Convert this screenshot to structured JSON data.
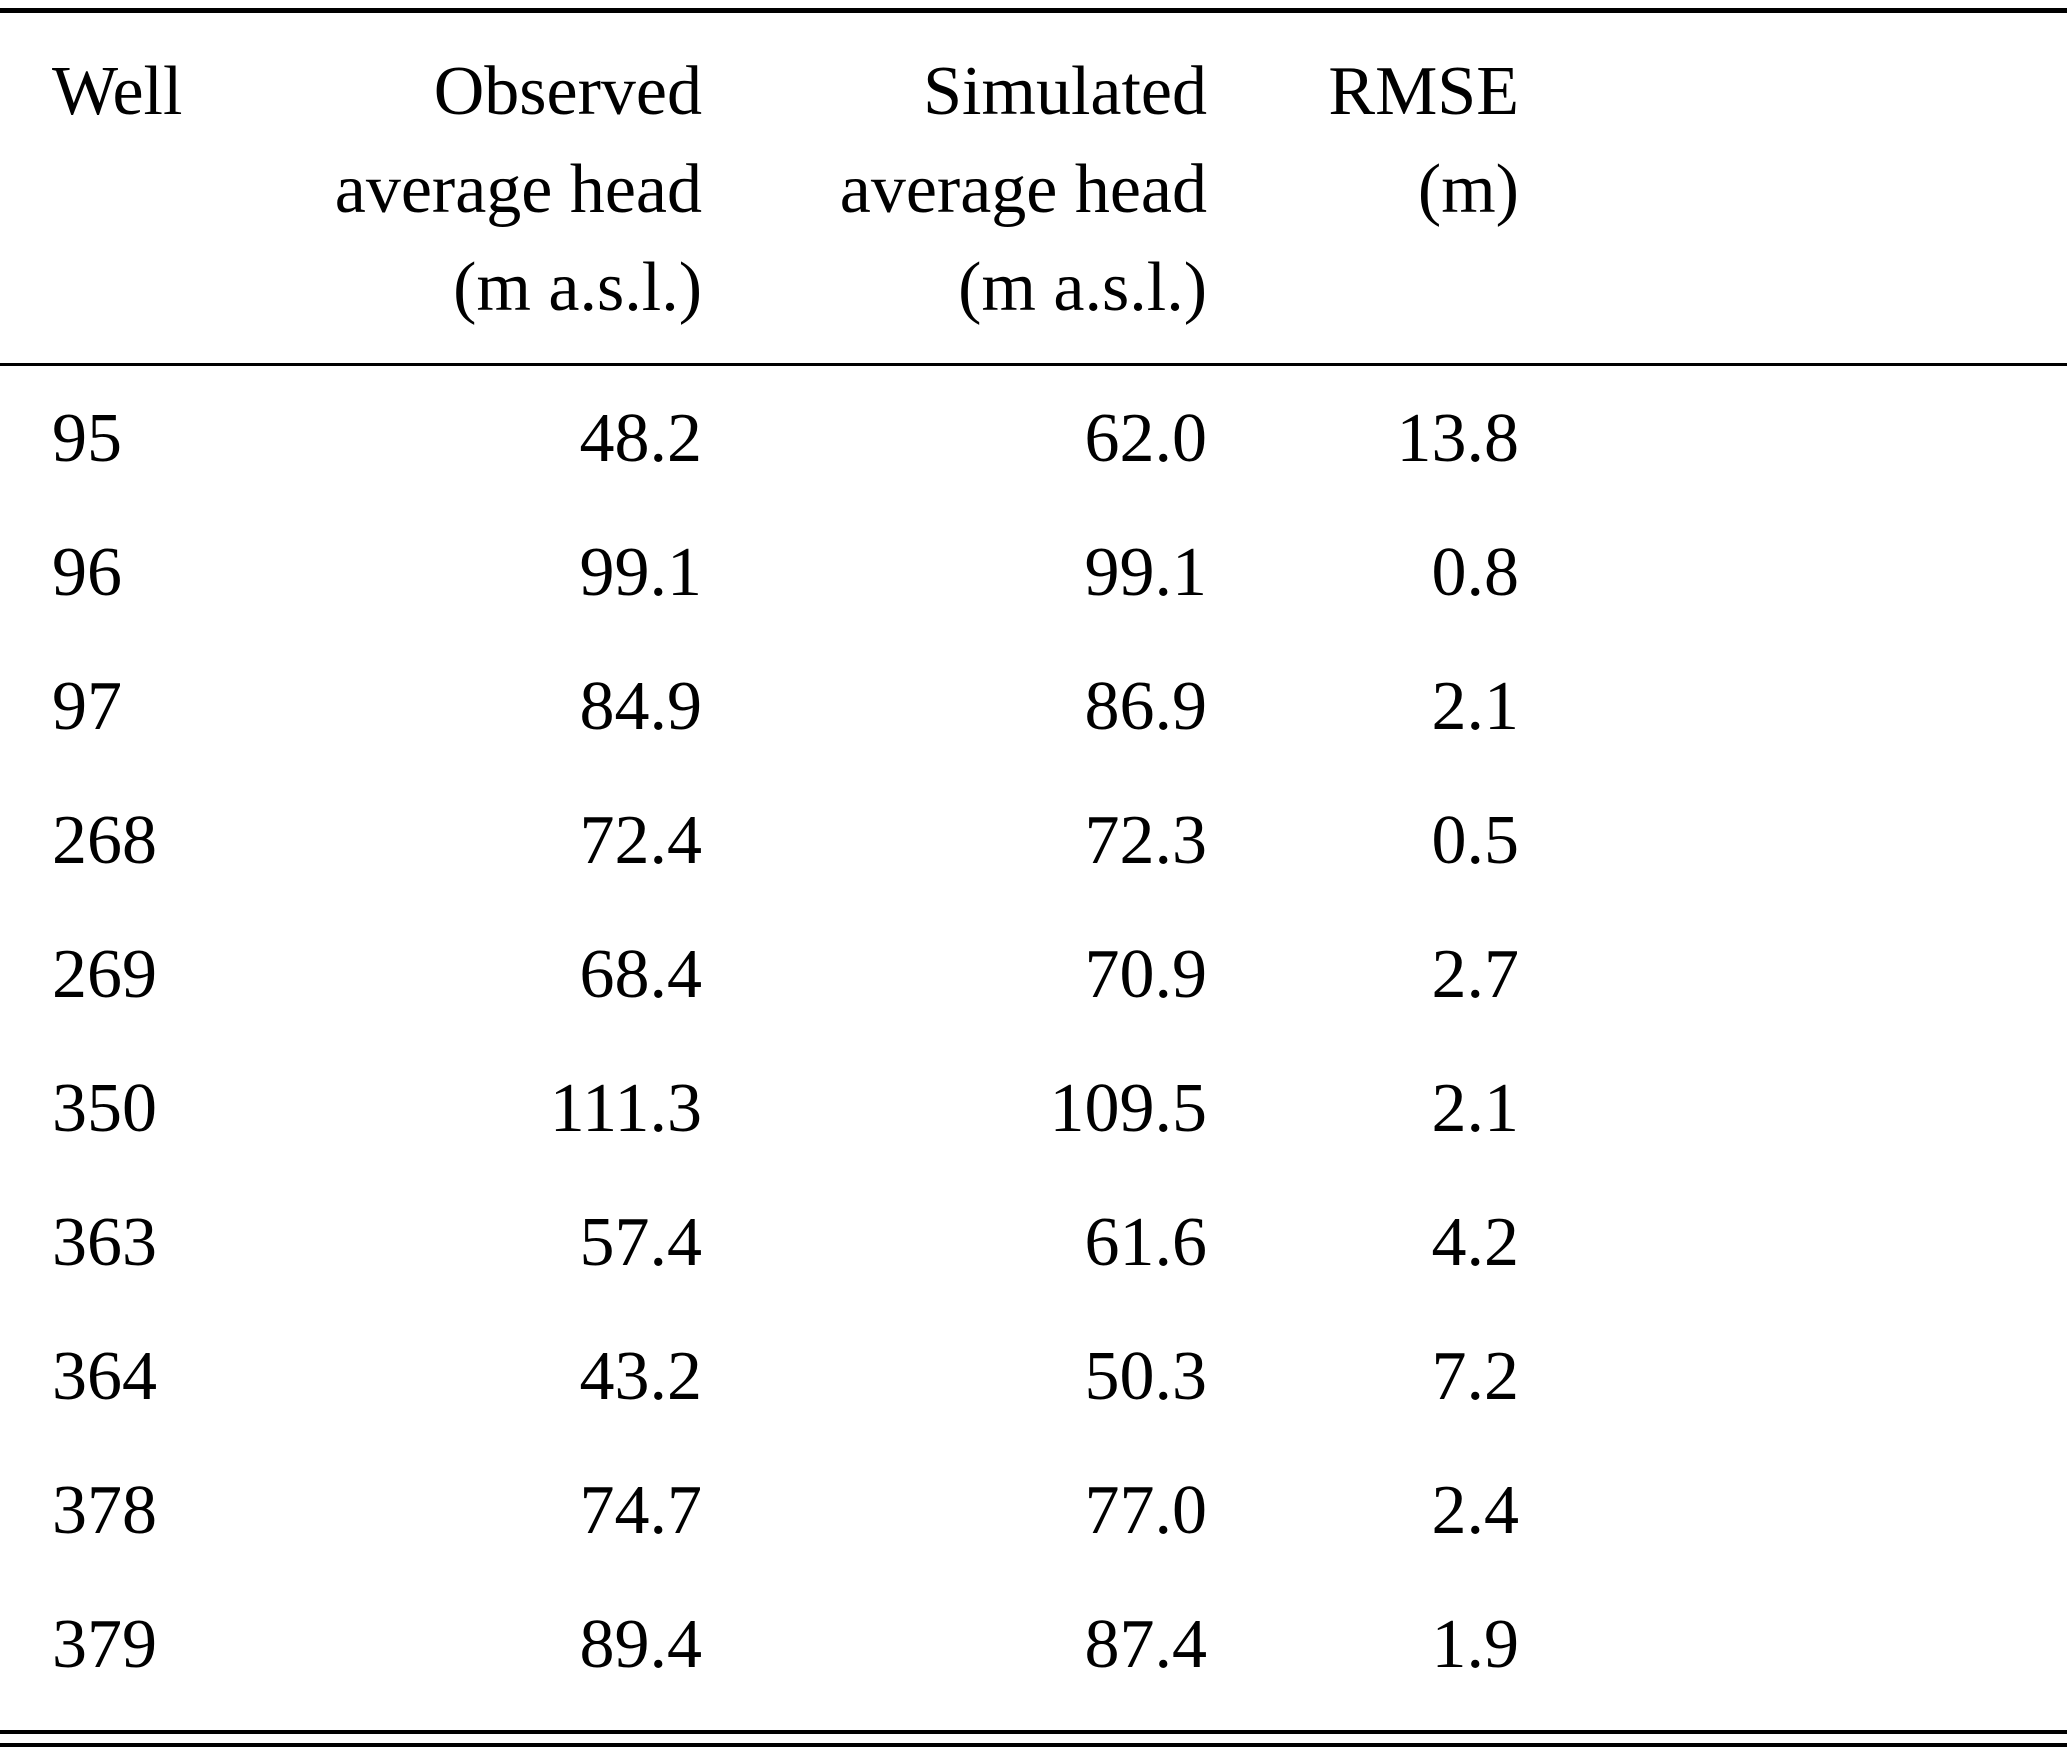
{
  "table": {
    "headers": [
      "Well",
      "Observed\naverage head\n(m a.s.l.)",
      "Simulated\naverage head\n(m a.s.l.)",
      "RMSE\n(m)"
    ],
    "rows": [
      [
        "95",
        "48.2",
        "62.0",
        "13.8"
      ],
      [
        "96",
        "99.1",
        "99.1",
        "0.8"
      ],
      [
        "97",
        "84.9",
        "86.9",
        "2.1"
      ],
      [
        "268",
        "72.4",
        "72.3",
        "0.5"
      ],
      [
        "269",
        "68.4",
        "70.9",
        "2.7"
      ],
      [
        "350",
        "111.3",
        "109.5",
        "2.1"
      ],
      [
        "363",
        "57.4",
        "61.6",
        "4.2"
      ],
      [
        "364",
        "43.2",
        "50.3",
        "7.2"
      ],
      [
        "378",
        "74.7",
        "77.0",
        "2.4"
      ],
      [
        "379",
        "89.4",
        "87.4",
        "1.9"
      ]
    ]
  },
  "chart_data": {
    "type": "table",
    "columns": [
      "Well",
      "Observed average head (m a.s.l.)",
      "Simulated average head (m a.s.l.)",
      "RMSE (m)"
    ],
    "rows": [
      [
        95,
        48.2,
        62.0,
        13.8
      ],
      [
        96,
        99.1,
        99.1,
        0.8
      ],
      [
        97,
        84.9,
        86.9,
        2.1
      ],
      [
        268,
        72.4,
        72.3,
        0.5
      ],
      [
        269,
        68.4,
        70.9,
        2.7
      ],
      [
        350,
        111.3,
        109.5,
        2.1
      ],
      [
        363,
        57.4,
        61.6,
        4.2
      ],
      [
        364,
        43.2,
        50.3,
        7.2
      ],
      [
        378,
        74.7,
        77.0,
        2.4
      ],
      [
        379,
        89.4,
        87.4,
        1.9
      ]
    ]
  }
}
